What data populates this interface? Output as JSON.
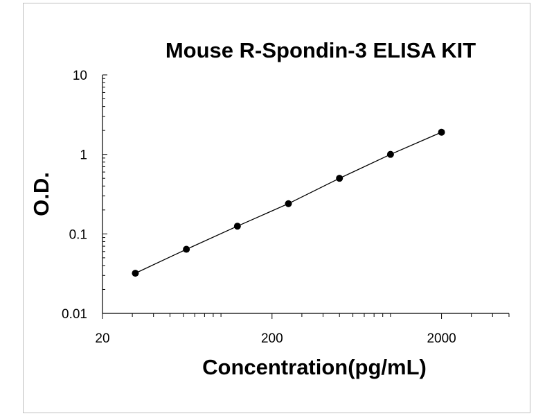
{
  "chart_data": {
    "type": "scatter",
    "title": "Mouse R-Spondin-3 ELISA KIT",
    "xlabel": "Concentration(pg/mL)",
    "ylabel": "O.D.",
    "x_scale": "log",
    "y_scale": "log",
    "xlim": [
      20,
      5000
    ],
    "ylim": [
      0.01,
      10
    ],
    "x_ticks": [
      "20",
      "200",
      "2000"
    ],
    "y_ticks": [
      "10",
      "1",
      "0.1",
      "0.01"
    ],
    "grid": false,
    "legend": "none",
    "series": [
      {
        "x": [
          31.25,
          62.5,
          125,
          250,
          500,
          1000,
          2000
        ],
        "y": [
          0.032,
          0.064,
          0.125,
          0.24,
          0.5,
          1.0,
          1.9
        ]
      }
    ],
    "colors": {
      "marker": "#000000",
      "line": "#000000",
      "frame": "#bfbfbf"
    }
  }
}
